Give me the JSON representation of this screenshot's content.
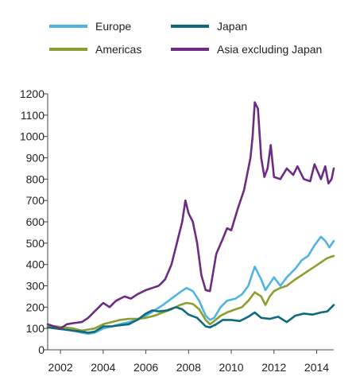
{
  "chart_data": {
    "type": "line",
    "title": "",
    "xlabel": "",
    "ylabel": "",
    "xlim": [
      2001.4,
      2014.8
    ],
    "ylim": [
      0,
      1200
    ],
    "y_ticks": [
      0,
      100,
      200,
      300,
      400,
      500,
      600,
      700,
      800,
      900,
      1000,
      1100,
      1200
    ],
    "x_ticks": [
      2002,
      2004,
      2006,
      2008,
      2010,
      2012,
      2014
    ],
    "y_tick_labels": [
      "0",
      "100",
      "200",
      "300",
      "400",
      "500",
      "600",
      "700",
      "800",
      "900",
      "1000",
      "1100",
      "1200"
    ],
    "x_tick_labels": [
      "2002",
      "2004",
      "2006",
      "2008",
      "2010",
      "2012",
      "2014"
    ],
    "grid": false,
    "legend_placement": "top",
    "series": [
      {
        "name": "Europe",
        "color": "#4fb3e3",
        "points": [
          [
            2001.4,
            110
          ],
          [
            2001.8,
            100
          ],
          [
            2002.2,
            95
          ],
          [
            2002.6,
            90
          ],
          [
            2003.0,
            80
          ],
          [
            2003.3,
            75
          ],
          [
            2003.6,
            80
          ],
          [
            2004.0,
            100
          ],
          [
            2004.4,
            110
          ],
          [
            2004.8,
            120
          ],
          [
            2005.2,
            130
          ],
          [
            2005.6,
            140
          ],
          [
            2006.0,
            160
          ],
          [
            2006.4,
            185
          ],
          [
            2006.8,
            210
          ],
          [
            2007.2,
            240
          ],
          [
            2007.6,
            270
          ],
          [
            2007.9,
            290
          ],
          [
            2008.2,
            275
          ],
          [
            2008.5,
            230
          ],
          [
            2008.8,
            160
          ],
          [
            2009.0,
            140
          ],
          [
            2009.2,
            150
          ],
          [
            2009.5,
            200
          ],
          [
            2009.8,
            230
          ],
          [
            2010.2,
            240
          ],
          [
            2010.5,
            260
          ],
          [
            2010.8,
            300
          ],
          [
            2011.1,
            390
          ],
          [
            2011.4,
            330
          ],
          [
            2011.6,
            280
          ],
          [
            2011.8,
            310
          ],
          [
            2012.0,
            340
          ],
          [
            2012.3,
            300
          ],
          [
            2012.6,
            340
          ],
          [
            2013.0,
            380
          ],
          [
            2013.3,
            420
          ],
          [
            2013.6,
            440
          ],
          [
            2013.9,
            490
          ],
          [
            2014.2,
            530
          ],
          [
            2014.4,
            510
          ],
          [
            2014.6,
            480
          ],
          [
            2014.8,
            510
          ]
        ]
      },
      {
        "name": "Americas",
        "color": "#8e9d2f",
        "points": [
          [
            2001.4,
            110
          ],
          [
            2001.8,
            110
          ],
          [
            2002.2,
            105
          ],
          [
            2002.6,
            100
          ],
          [
            2003.0,
            90
          ],
          [
            2003.3,
            95
          ],
          [
            2003.6,
            100
          ],
          [
            2004.0,
            120
          ],
          [
            2004.4,
            130
          ],
          [
            2004.8,
            140
          ],
          [
            2005.2,
            145
          ],
          [
            2005.6,
            145
          ],
          [
            2006.0,
            150
          ],
          [
            2006.4,
            160
          ],
          [
            2006.8,
            175
          ],
          [
            2007.2,
            190
          ],
          [
            2007.6,
            210
          ],
          [
            2007.9,
            220
          ],
          [
            2008.2,
            215
          ],
          [
            2008.5,
            190
          ],
          [
            2008.8,
            140
          ],
          [
            2009.0,
            120
          ],
          [
            2009.2,
            135
          ],
          [
            2009.5,
            160
          ],
          [
            2009.8,
            175
          ],
          [
            2010.2,
            190
          ],
          [
            2010.5,
            200
          ],
          [
            2010.8,
            230
          ],
          [
            2011.1,
            270
          ],
          [
            2011.4,
            250
          ],
          [
            2011.6,
            210
          ],
          [
            2011.8,
            250
          ],
          [
            2012.0,
            275
          ],
          [
            2012.3,
            290
          ],
          [
            2012.6,
            300
          ],
          [
            2013.0,
            330
          ],
          [
            2013.3,
            350
          ],
          [
            2013.6,
            370
          ],
          [
            2013.9,
            390
          ],
          [
            2014.2,
            410
          ],
          [
            2014.5,
            430
          ],
          [
            2014.8,
            440
          ]
        ]
      },
      {
        "name": "Japan",
        "color": "#0f6b7c",
        "points": [
          [
            2001.4,
            105
          ],
          [
            2001.8,
            100
          ],
          [
            2002.2,
            95
          ],
          [
            2002.6,
            90
          ],
          [
            2003.0,
            85
          ],
          [
            2003.3,
            80
          ],
          [
            2003.6,
            85
          ],
          [
            2004.0,
            110
          ],
          [
            2004.4,
            110
          ],
          [
            2004.8,
            115
          ],
          [
            2005.2,
            120
          ],
          [
            2005.6,
            140
          ],
          [
            2006.0,
            170
          ],
          [
            2006.3,
            185
          ],
          [
            2006.6,
            180
          ],
          [
            2007.0,
            185
          ],
          [
            2007.4,
            200
          ],
          [
            2007.7,
            190
          ],
          [
            2008.0,
            165
          ],
          [
            2008.4,
            150
          ],
          [
            2008.8,
            110
          ],
          [
            2009.0,
            105
          ],
          [
            2009.3,
            120
          ],
          [
            2009.6,
            140
          ],
          [
            2010.0,
            140
          ],
          [
            2010.4,
            135
          ],
          [
            2010.8,
            155
          ],
          [
            2011.1,
            175
          ],
          [
            2011.4,
            150
          ],
          [
            2011.8,
            145
          ],
          [
            2012.2,
            155
          ],
          [
            2012.6,
            130
          ],
          [
            2013.0,
            160
          ],
          [
            2013.4,
            170
          ],
          [
            2013.8,
            165
          ],
          [
            2014.2,
            175
          ],
          [
            2014.5,
            180
          ],
          [
            2014.8,
            210
          ]
        ]
      },
      {
        "name": "Asia excluding Japan",
        "color": "#6d2c84",
        "points": [
          [
            2001.4,
            120
          ],
          [
            2001.7,
            110
          ],
          [
            2002.0,
            100
          ],
          [
            2002.3,
            120
          ],
          [
            2002.6,
            125
          ],
          [
            2003.0,
            130
          ],
          [
            2003.3,
            150
          ],
          [
            2003.6,
            180
          ],
          [
            2004.0,
            220
          ],
          [
            2004.3,
            200
          ],
          [
            2004.6,
            230
          ],
          [
            2005.0,
            250
          ],
          [
            2005.3,
            240
          ],
          [
            2005.6,
            260
          ],
          [
            2006.0,
            280
          ],
          [
            2006.3,
            290
          ],
          [
            2006.6,
            300
          ],
          [
            2006.9,
            330
          ],
          [
            2007.2,
            400
          ],
          [
            2007.5,
            520
          ],
          [
            2007.7,
            600
          ],
          [
            2007.85,
            700
          ],
          [
            2008.0,
            640
          ],
          [
            2008.2,
            600
          ],
          [
            2008.4,
            500
          ],
          [
            2008.6,
            350
          ],
          [
            2008.8,
            280
          ],
          [
            2009.0,
            275
          ],
          [
            2009.3,
            450
          ],
          [
            2009.6,
            520
          ],
          [
            2009.8,
            570
          ],
          [
            2010.0,
            560
          ],
          [
            2010.3,
            660
          ],
          [
            2010.6,
            750
          ],
          [
            2010.9,
            900
          ],
          [
            2011.0,
            1000
          ],
          [
            2011.1,
            1160
          ],
          [
            2011.25,
            1130
          ],
          [
            2011.4,
            900
          ],
          [
            2011.55,
            810
          ],
          [
            2011.7,
            850
          ],
          [
            2011.85,
            960
          ],
          [
            2012.0,
            810
          ],
          [
            2012.3,
            800
          ],
          [
            2012.6,
            850
          ],
          [
            2012.9,
            820
          ],
          [
            2013.1,
            860
          ],
          [
            2013.4,
            800
          ],
          [
            2013.7,
            790
          ],
          [
            2013.9,
            870
          ],
          [
            2014.2,
            800
          ],
          [
            2014.4,
            860
          ],
          [
            2014.55,
            780
          ],
          [
            2014.7,
            800
          ],
          [
            2014.8,
            850
          ]
        ]
      }
    ]
  }
}
